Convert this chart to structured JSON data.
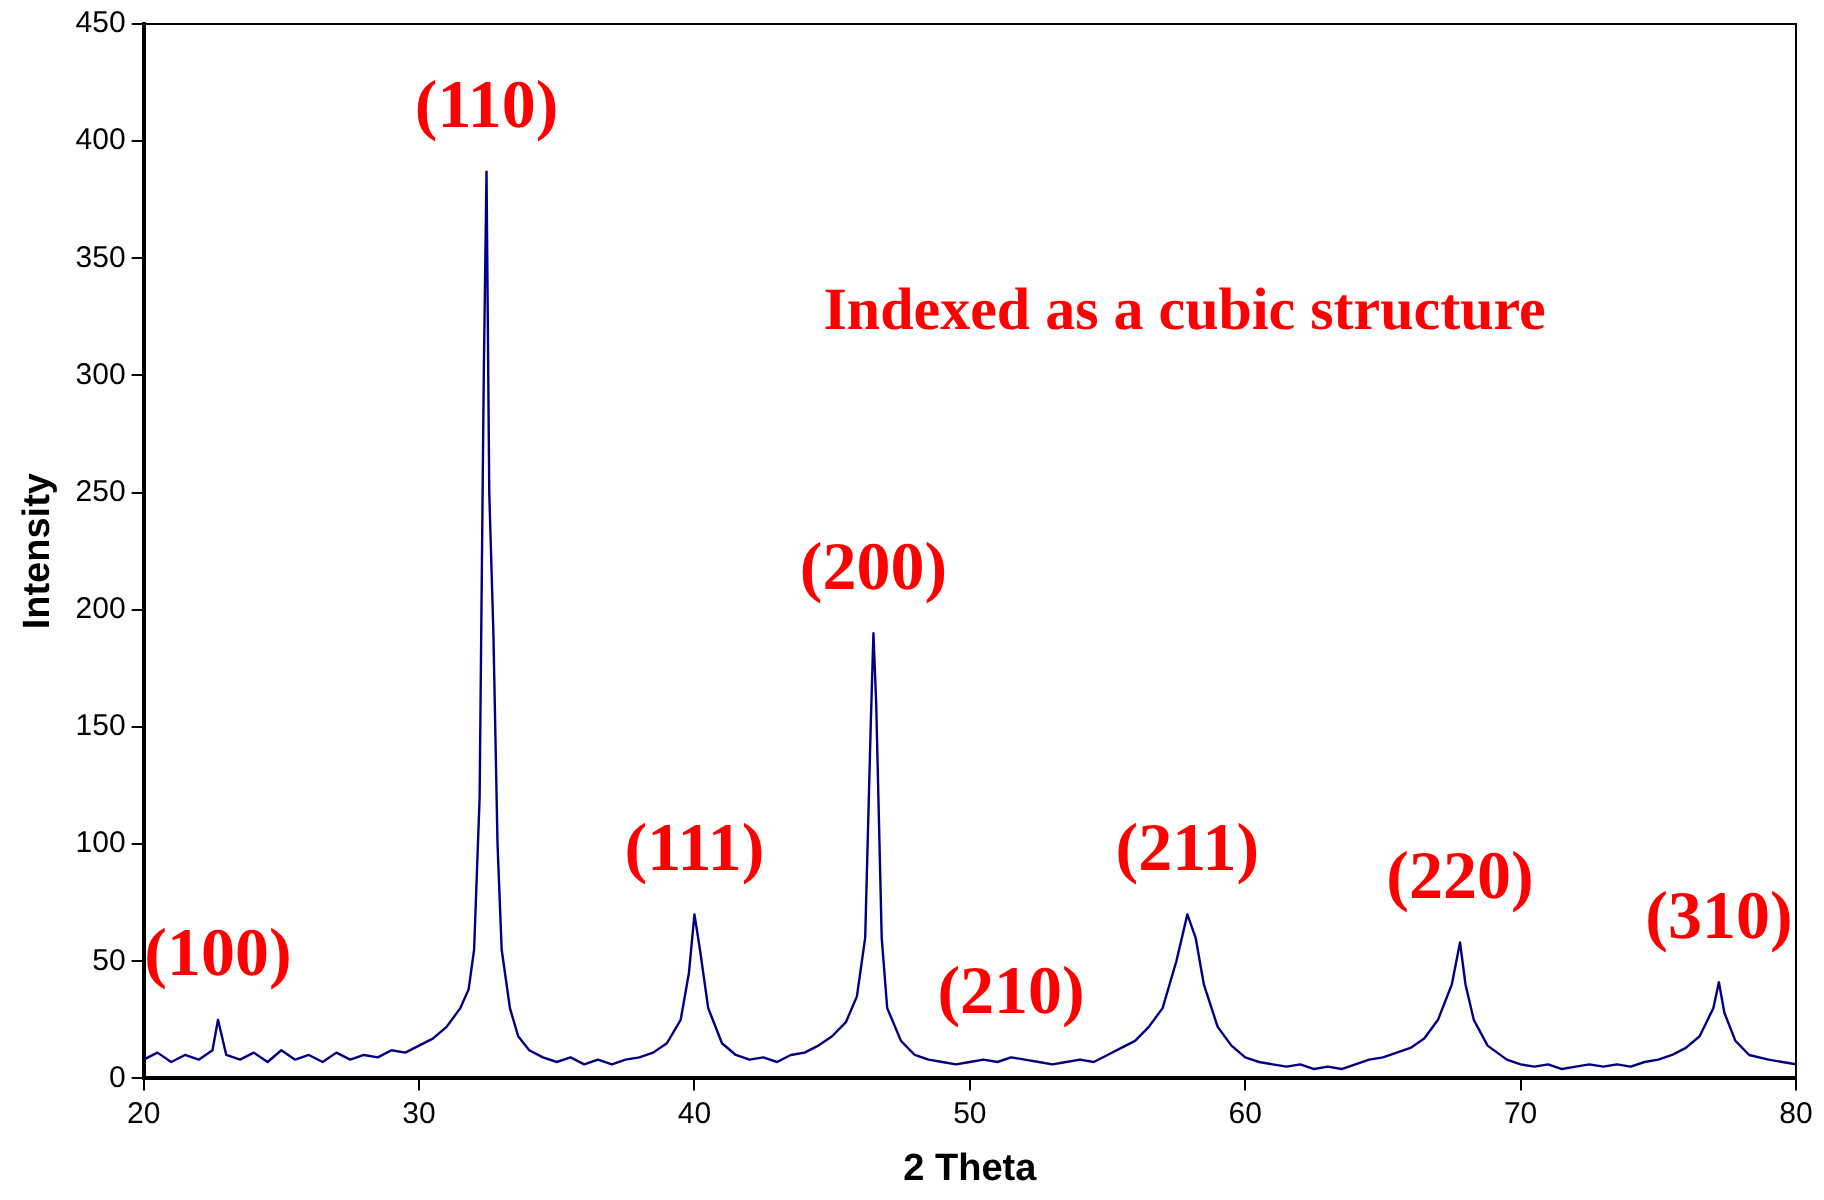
{
  "chart_data": {
    "type": "line",
    "xlabel": "2 Theta",
    "ylabel": "Intensity",
    "xlim": [
      20,
      80
    ],
    "xticks": [
      20,
      30,
      40,
      50,
      60,
      70,
      80
    ],
    "ylim": [
      0,
      450
    ],
    "yticks": [
      0,
      50,
      100,
      150,
      200,
      250,
      300,
      350,
      400,
      450
    ],
    "grid": false,
    "legend": false,
    "marker": "none",
    "line_style": "solid",
    "x": [
      20,
      20.5,
      21,
      21.5,
      22,
      22.5,
      22.7,
      23,
      23.5,
      24,
      24.5,
      25,
      25.5,
      26,
      26.5,
      27,
      27.5,
      28,
      28.5,
      29,
      29.5,
      30,
      30.5,
      31,
      31.5,
      31.8,
      32.0,
      32.2,
      32.35,
      32.45,
      32.55,
      32.7,
      32.85,
      33.0,
      33.3,
      33.6,
      34,
      34.5,
      35,
      35.5,
      36,
      36.5,
      37,
      37.5,
      38,
      38.5,
      39,
      39.5,
      39.8,
      40.0,
      40.2,
      40.5,
      41,
      41.5,
      42,
      42.5,
      43,
      43.5,
      44,
      44.5,
      45,
      45.5,
      45.9,
      46.2,
      46.4,
      46.5,
      46.6,
      46.8,
      47.0,
      47.5,
      48,
      48.5,
      49,
      49.5,
      50,
      50.5,
      51,
      51.5,
      52,
      52.5,
      53,
      53.5,
      54,
      54.5,
      55,
      55.5,
      56,
      56.5,
      57,
      57.5,
      57.9,
      58.2,
      58.5,
      59,
      59.5,
      60,
      60.5,
      61,
      61.5,
      62,
      62.5,
      63,
      63.5,
      64,
      64.5,
      65,
      65.5,
      66,
      66.5,
      67,
      67.5,
      67.8,
      68.0,
      68.3,
      68.8,
      69.5,
      70,
      70.5,
      71,
      71.5,
      72,
      72.5,
      73,
      73.5,
      74,
      74.5,
      75,
      75.5,
      76,
      76.5,
      77.0,
      77.2,
      77.4,
      77.8,
      78.3,
      79,
      79.5,
      80
    ],
    "series": [
      {
        "color": "#000080",
        "values": [
          8,
          11,
          7,
          10,
          8,
          12,
          25,
          10,
          8,
          11,
          7,
          12,
          8,
          10,
          7,
          11,
          8,
          10,
          9,
          12,
          11,
          14,
          17,
          22,
          30,
          38,
          55,
          120,
          300,
          387,
          250,
          190,
          100,
          55,
          30,
          18,
          12,
          9,
          7,
          9,
          6,
          8,
          6,
          8,
          9,
          11,
          15,
          25,
          45,
          70,
          55,
          30,
          15,
          10,
          8,
          9,
          7,
          10,
          11,
          14,
          18,
          24,
          35,
          60,
          150,
          190,
          160,
          60,
          30,
          16,
          10,
          8,
          7,
          6,
          7,
          8,
          7,
          9,
          8,
          7,
          6,
          7,
          8,
          7,
          10,
          13,
          16,
          22,
          30,
          50,
          70,
          60,
          40,
          22,
          14,
          9,
          7,
          6,
          5,
          6,
          4,
          5,
          4,
          6,
          8,
          9,
          11,
          13,
          17,
          25,
          40,
          58,
          40,
          25,
          14,
          8,
          6,
          5,
          6,
          4,
          5,
          6,
          5,
          6,
          5,
          7,
          8,
          10,
          13,
          18,
          30,
          41,
          28,
          16,
          10,
          8,
          7,
          6
        ]
      }
    ],
    "annotations": [
      {
        "text": "(100)",
        "x": 22.7,
        "y": 25
      },
      {
        "text": "(110)",
        "x": 32.45,
        "y": 387
      },
      {
        "text": "(111)",
        "x": 40.0,
        "y": 70
      },
      {
        "text": "(200)",
        "x": 46.5,
        "y": 190
      },
      {
        "text": "(210)",
        "x": 51.5,
        "y": 9
      },
      {
        "text": "(211)",
        "x": 57.9,
        "y": 70
      },
      {
        "text": "(220)",
        "x": 67.8,
        "y": 58
      },
      {
        "text": "(310)",
        "x": 77.2,
        "y": 41
      },
      "Indexed as a cubic structure"
    ]
  }
}
